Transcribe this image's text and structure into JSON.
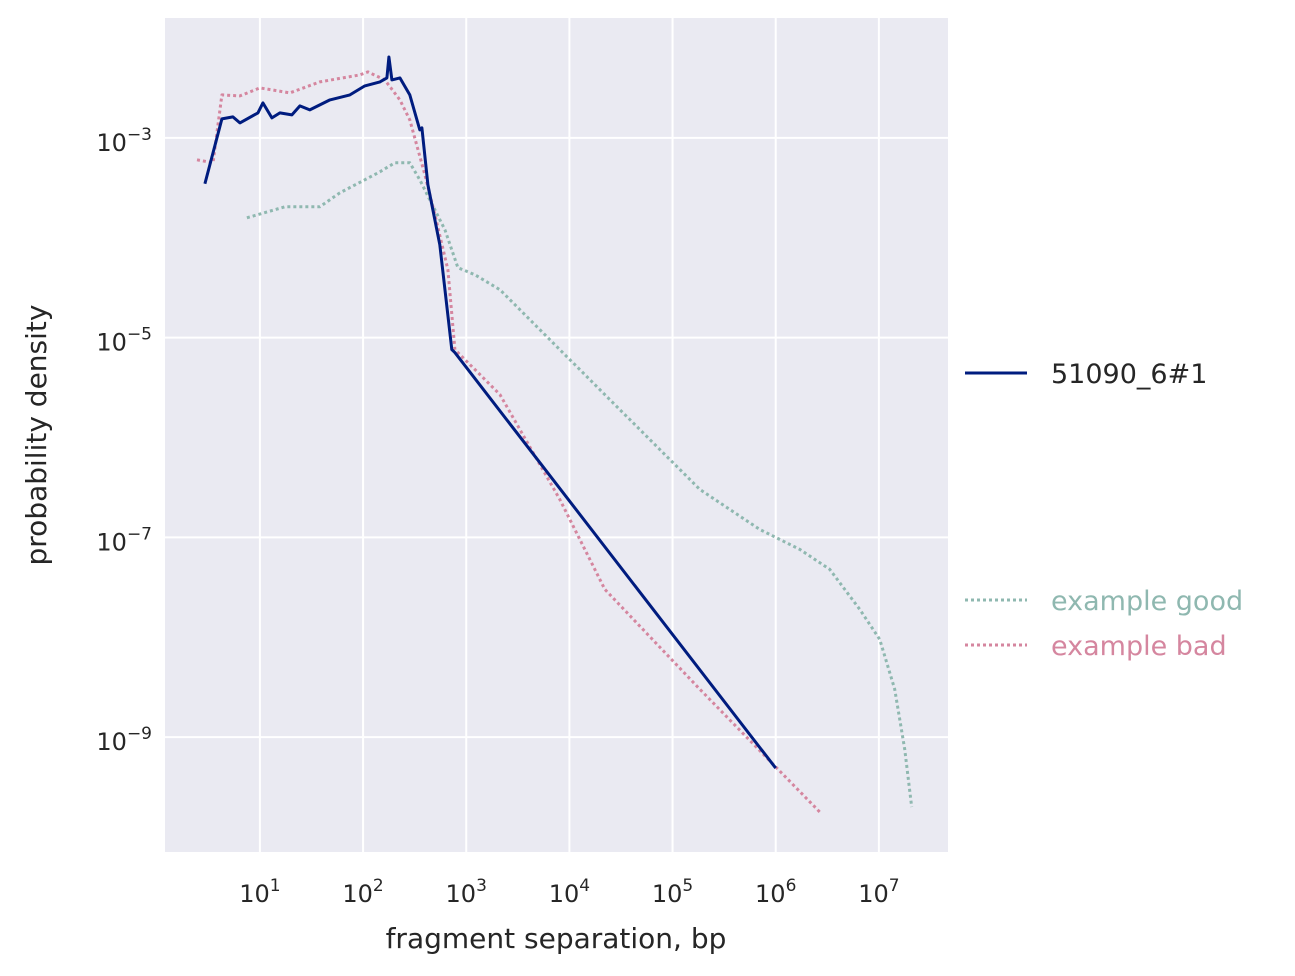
{
  "chart_data": {
    "type": "line",
    "title": "",
    "xlabel": "fragment separation, bp",
    "ylabel": "probability density",
    "xscale": "log",
    "yscale": "log",
    "xlim_log10": [
      0.08,
      7.67
    ],
    "ylim_log10": [
      -10.15,
      -1.8
    ],
    "grid": true,
    "legend_placement": "right-outside",
    "x_ticks": [
      {
        "base": "10",
        "exp": "1",
        "v": 1
      },
      {
        "base": "10",
        "exp": "2",
        "v": 2
      },
      {
        "base": "10",
        "exp": "3",
        "v": 3
      },
      {
        "base": "10",
        "exp": "4",
        "v": 4
      },
      {
        "base": "10",
        "exp": "5",
        "v": 5
      },
      {
        "base": "10",
        "exp": "6",
        "v": 6
      },
      {
        "base": "10",
        "exp": "7",
        "v": 7
      }
    ],
    "y_ticks": [
      {
        "base": "10",
        "exp": "−3",
        "v": -3
      },
      {
        "base": "10",
        "exp": "−5",
        "v": -5
      },
      {
        "base": "10",
        "exp": "−7",
        "v": -7
      },
      {
        "base": "10",
        "exp": "−9",
        "v": -9
      }
    ],
    "series": [
      {
        "name": "51090_6#1",
        "color": "#001c7f",
        "style": "solid",
        "log10_x": [
          0.467,
          0.632,
          0.738,
          0.806,
          0.981,
          1.029,
          1.116,
          1.194,
          1.31,
          1.388,
          1.484,
          1.678,
          1.872,
          2.017,
          2.163,
          2.231,
          2.25,
          2.279,
          2.357,
          2.453,
          2.55,
          2.57,
          2.628,
          2.744,
          2.86,
          2.89,
          6.0
        ],
        "log10_y": [
          -3.46,
          -2.81,
          -2.79,
          -2.85,
          -2.75,
          -2.65,
          -2.8,
          -2.75,
          -2.77,
          -2.68,
          -2.72,
          -2.62,
          -2.57,
          -2.48,
          -2.44,
          -2.4,
          -2.19,
          -2.42,
          -2.4,
          -2.57,
          -2.92,
          -2.9,
          -3.47,
          -4.07,
          -5.12,
          -5.15,
          -9.31
        ]
      },
      {
        "name": "example good",
        "color": "#8fb8b0",
        "style": "dotted",
        "log10_x": [
          0.874,
          1.242,
          1.581,
          1.775,
          2.017,
          2.163,
          2.308,
          2.453,
          2.55,
          2.647,
          2.793,
          2.919,
          3.083,
          3.326,
          3.713,
          4.004,
          4.295,
          4.779,
          5.264,
          5.845,
          6.233,
          6.523,
          6.814,
          7.008,
          7.153,
          7.25,
          7.318
        ],
        "log10_y": [
          -3.8,
          -3.69,
          -3.69,
          -3.55,
          -3.42,
          -3.34,
          -3.25,
          -3.25,
          -3.42,
          -3.62,
          -3.92,
          -4.3,
          -4.37,
          -4.52,
          -4.92,
          -5.22,
          -5.52,
          -6.02,
          -6.52,
          -6.92,
          -7.12,
          -7.32,
          -7.72,
          -8.02,
          -8.52,
          -9.12,
          -9.7
        ]
      },
      {
        "name": "example bad",
        "color": "#d5869f",
        "style": "dotted",
        "log10_x": [
          0.39,
          0.545,
          0.632,
          0.806,
          1.0,
          1.291,
          1.581,
          1.969,
          2.047,
          2.211,
          2.357,
          2.453,
          2.599,
          2.696,
          2.822,
          2.89,
          3.326,
          3.907,
          4.343,
          5.264,
          6.446
        ],
        "log10_y": [
          -3.22,
          -3.25,
          -2.57,
          -2.58,
          -2.5,
          -2.55,
          -2.44,
          -2.37,
          -2.34,
          -2.42,
          -2.62,
          -2.82,
          -3.37,
          -3.77,
          -4.32,
          -5.12,
          -5.57,
          -6.62,
          -7.52,
          -8.52,
          -9.77
        ]
      }
    ]
  }
}
